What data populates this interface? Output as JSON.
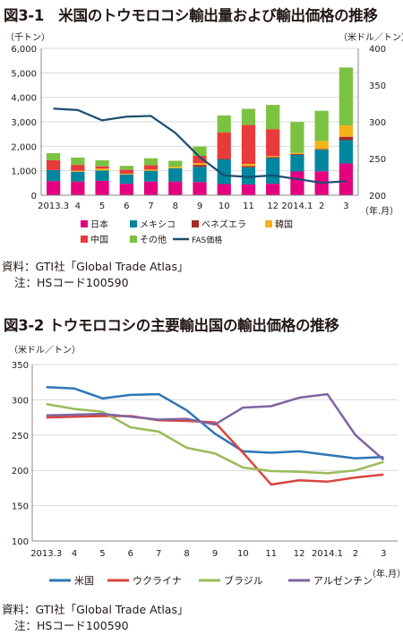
{
  "figure1": {
    "title": "図3-1　米国のトウモロコシ輸出量および輸出価格の推移",
    "left_unit": "（千トン）",
    "right_unit": "（米ドル／トン）",
    "x_unit": "（年.月）",
    "source": "資料：GTI社「Global Trade Atlas」",
    "note": "注：HSコード100590",
    "chart_data": {
      "type": "bar",
      "stacked": true,
      "categories": [
        "2013.3",
        "4",
        "5",
        "6",
        "7",
        "8",
        "9",
        "10",
        "11",
        "12",
        "2014.1",
        "2",
        "3"
      ],
      "ylim": [
        0,
        6000
      ],
      "yticks": [
        "0",
        "1,000",
        "2,000",
        "3,000",
        "4,000",
        "5,000",
        "6,000"
      ],
      "y2lim": [
        200,
        400
      ],
      "y2ticks": [
        "200",
        "250",
        "300",
        "350",
        "400"
      ],
      "series": [
        {
          "name": "日本",
          "color": "#e4007f",
          "values": [
            580,
            560,
            590,
            470,
            560,
            560,
            540,
            460,
            440,
            470,
            970,
            980,
            1300
          ]
        },
        {
          "name": "メキシコ",
          "color": "#00869e",
          "values": [
            450,
            400,
            420,
            380,
            440,
            540,
            620,
            1000,
            700,
            1050,
            680,
            880,
            950
          ]
        },
        {
          "name": "ベネズエラ",
          "color": "#a52a2a",
          "values": [
            0,
            0,
            0,
            0,
            0,
            0,
            80,
            50,
            60,
            40,
            40,
            30,
            140
          ]
        },
        {
          "name": "韓国",
          "color": "#f5b21a",
          "values": [
            0,
            40,
            80,
            30,
            50,
            60,
            70,
            0,
            80,
            40,
            40,
            330,
            460
          ]
        },
        {
          "name": "中国",
          "color": "#e83a3a",
          "values": [
            400,
            240,
            90,
            160,
            180,
            0,
            300,
            1050,
            1590,
            1100,
            0,
            0,
            0
          ]
        },
        {
          "name": "その他",
          "color": "#7cc242",
          "values": [
            290,
            300,
            250,
            160,
            280,
            250,
            380,
            700,
            660,
            990,
            1260,
            1230,
            2370
          ]
        }
      ],
      "line": {
        "name": "FAS価格",
        "color": "#1c4d6e",
        "axis": "right",
        "values": [
          318,
          316,
          302,
          307,
          308,
          285,
          252,
          227,
          225,
          227,
          222,
          217,
          219
        ]
      }
    }
  },
  "figure2": {
    "title": "図3-2 トウモロコシの主要輸出国の輸出価格の推移",
    "y_unit": "（米ドル／トン）",
    "x_unit": "（年.月）",
    "source": "資料：GTI社「Global Trade Atlas」",
    "note": "注：HSコード100590",
    "chart_data": {
      "type": "line",
      "categories": [
        "2013.3",
        "4",
        "5",
        "6",
        "7",
        "8",
        "9",
        "10",
        "11",
        "12",
        "2014.1",
        "2",
        "3"
      ],
      "ylim": [
        100,
        350
      ],
      "yticks": [
        "100",
        "150",
        "200",
        "250",
        "300",
        "350"
      ],
      "grid": true,
      "series": [
        {
          "name": "米国",
          "color": "#2e75b6",
          "values": [
            318,
            316,
            302,
            307,
            308,
            285,
            252,
            227,
            225,
            227,
            222,
            217,
            219
          ]
        },
        {
          "name": "ウクライナ",
          "color": "#d9443f",
          "values": [
            275,
            276,
            277,
            277,
            271,
            270,
            268,
            225,
            180,
            186,
            184,
            190,
            194
          ]
        },
        {
          "name": "ブラジル",
          "color": "#9bbb59",
          "values": [
            294,
            287,
            283,
            261,
            255,
            232,
            224,
            204,
            199,
            198,
            196,
            200,
            212
          ]
        },
        {
          "name": "アルゼンチン",
          "color": "#8064a2",
          "values": [
            278,
            279,
            280,
            276,
            272,
            273,
            265,
            289,
            291,
            303,
            308,
            250,
            215
          ]
        }
      ]
    }
  }
}
